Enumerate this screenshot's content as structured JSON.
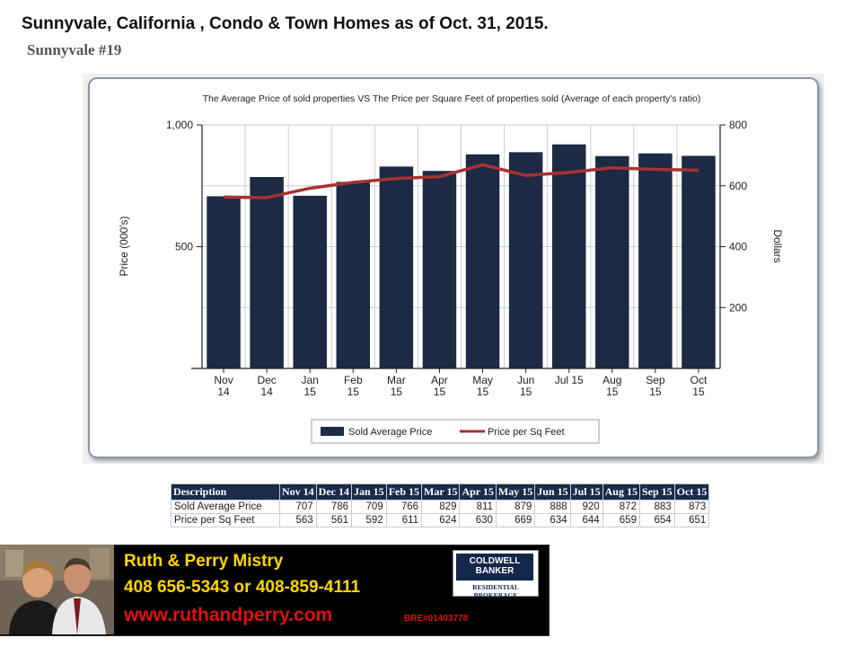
{
  "header": {
    "title": "Sunnyvale, California , Condo & Town Homes as of Oct. 31, 2015.",
    "subtitle": "Sunnyvale #19"
  },
  "chart_data": {
    "type": "bar",
    "title": "The Average Price of sold properties VS The Price per Square Feet of properties sold (Average of each property's ratio)",
    "categories": [
      "Nov 14",
      "Dec 14",
      "Jan 15",
      "Feb 15",
      "Mar 15",
      "Apr 15",
      "May 15",
      "Jun 15",
      "Jul 15",
      "Aug 15",
      "Sep 15",
      "Oct 15"
    ],
    "tick_labels": [
      [
        "Nov",
        "14"
      ],
      [
        "Dec",
        "14"
      ],
      [
        "Jan",
        "15"
      ],
      [
        "Feb",
        "15"
      ],
      [
        "Mar",
        "15"
      ],
      [
        "Apr",
        "15"
      ],
      [
        "May",
        "15"
      ],
      [
        "Jun",
        "15"
      ],
      [
        "Jul 15",
        ""
      ],
      [
        "Aug",
        "15"
      ],
      [
        "Sep",
        "15"
      ],
      [
        "Oct",
        "15"
      ]
    ],
    "series": [
      {
        "name": "Sold Average Price",
        "type": "bar",
        "axis": "left",
        "color": "#1c2a44",
        "values": [
          707,
          786,
          709,
          766,
          829,
          811,
          879,
          888,
          920,
          872,
          883,
          873
        ]
      },
      {
        "name": "Price per Sq Feet",
        "type": "line",
        "axis": "right",
        "color": "#a83232",
        "values": [
          563,
          561,
          592,
          611,
          624,
          630,
          669,
          634,
          644,
          659,
          654,
          651
        ]
      }
    ],
    "ylabel": "Price (000's)",
    "y2label": "Dollars",
    "ylim": [
      0,
      1000
    ],
    "y2lim": [
      0,
      800
    ],
    "yticks": [
      "1,000",
      "500"
    ],
    "yticks_values": [
      1000,
      500
    ],
    "y2ticks": [
      "800",
      "600",
      "400",
      "200"
    ],
    "y2ticks_values": [
      800,
      600,
      400,
      200
    ],
    "legend_position": "bottom-center",
    "grid": true
  },
  "table": {
    "headers": [
      "Description",
      "Nov 14",
      "Dec 14",
      "Jan 15",
      "Feb 15",
      "Mar 15",
      "Apr 15",
      "May 15",
      "Jun 15",
      "Jul 15",
      "Aug 15",
      "Sep 15",
      "Oct 15"
    ],
    "rows": [
      [
        "Sold Average Price",
        "707",
        "786",
        "709",
        "766",
        "829",
        "811",
        "879",
        "888",
        "920",
        "872",
        "883",
        "873"
      ],
      [
        "Price per Sq Feet",
        "563",
        "561",
        "592",
        "611",
        "624",
        "630",
        "669",
        "634",
        "644",
        "659",
        "654",
        "651"
      ]
    ]
  },
  "banner": {
    "name": "Ruth & Perry Mistry",
    "phone": "408 656-5343  or 408-859-4111",
    "website": "www.ruthandperry.com",
    "license": "BRE#01403778",
    "logo_line1": "COLDWELL",
    "logo_line2": "BANKER",
    "logo_sub": "RESIDENTIAL BROKERAGE"
  },
  "colors": {
    "bar": "#1c2a44",
    "line": "#a83232",
    "table_header": "#1a2b4c",
    "banner_name": "#ffd700",
    "banner_web": "#e01010"
  }
}
